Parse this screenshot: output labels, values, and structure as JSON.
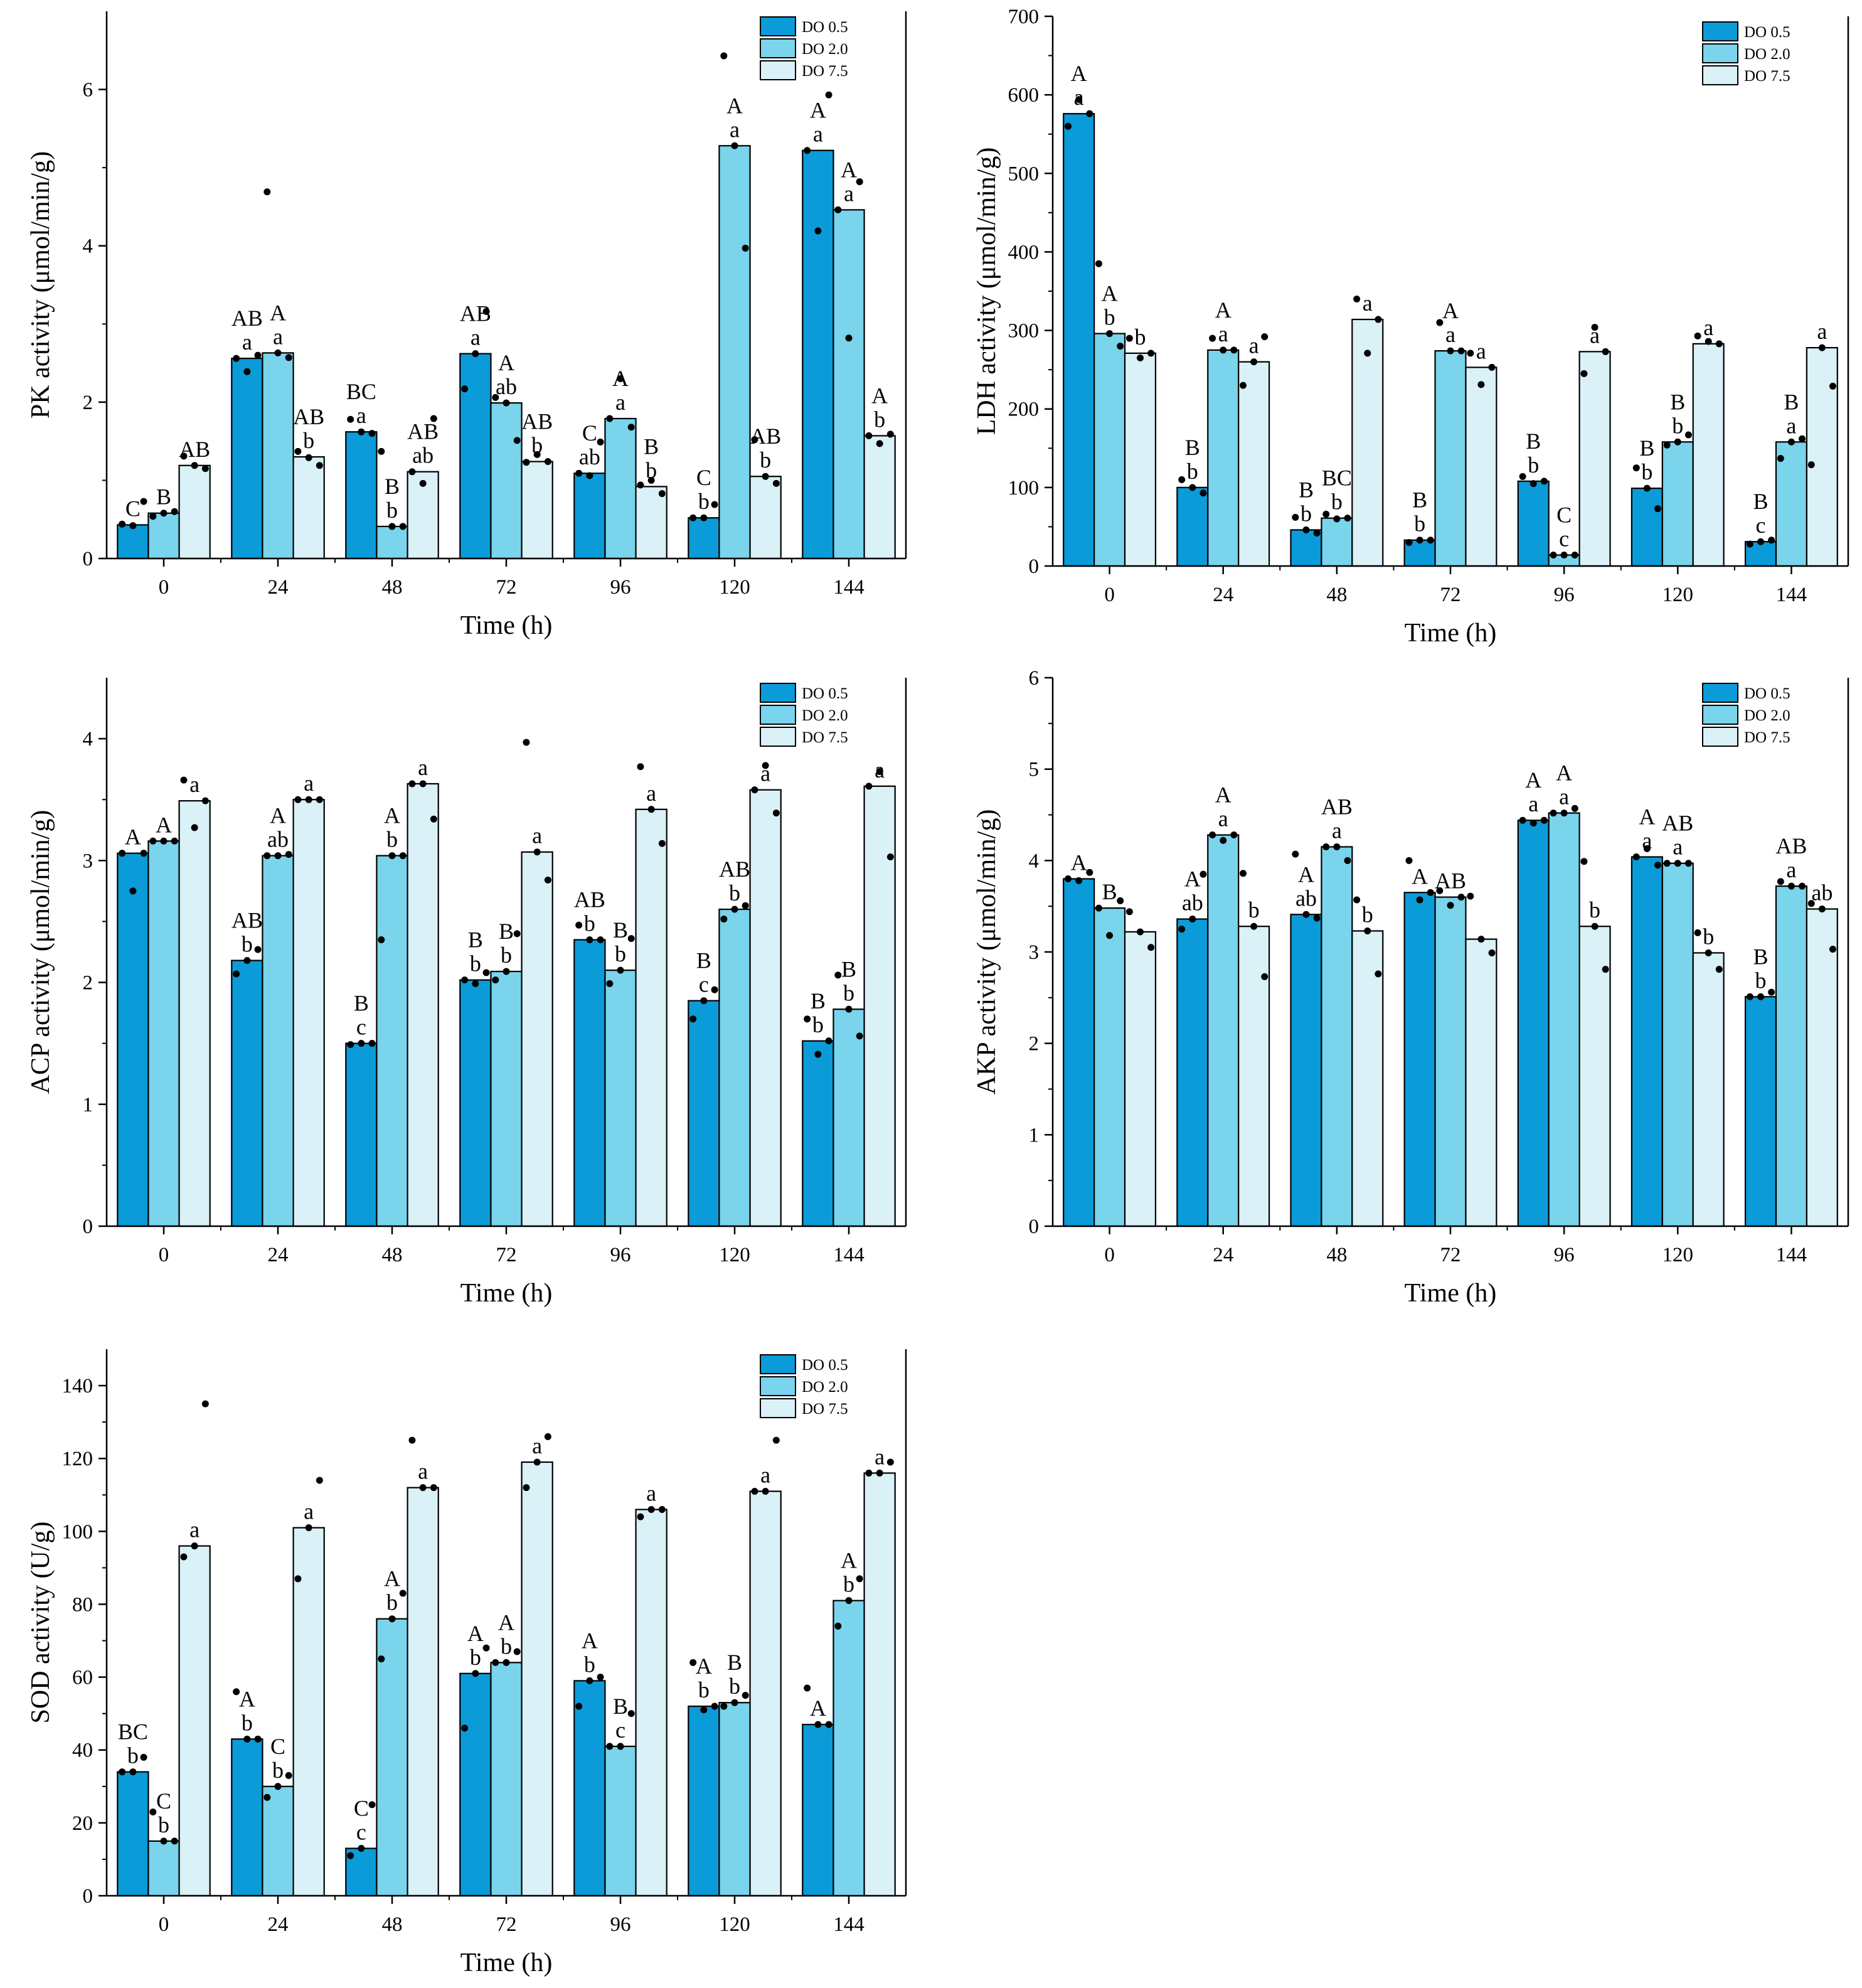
{
  "legend": [
    "DO 0.5",
    "DO 2.0",
    "DO 7.5"
  ],
  "colors": [
    "#0b9bd8",
    "#79d4ec",
    "#d9f1f7"
  ],
  "chart_data": [
    {
      "type": "bar",
      "title": "",
      "xlabel": "Time (h)",
      "ylabel": "PK activity (μmol/min/g)",
      "categories": [
        "0",
        "24",
        "48",
        "72",
        "96",
        "120",
        "144"
      ],
      "ylim": [
        0,
        7
      ],
      "yticks": [
        0,
        2,
        4,
        6
      ],
      "series": [
        {
          "name": "DO 0.5",
          "values": [
            0.43,
            2.56,
            1.62,
            2.62,
            1.09,
            0.52,
            5.22
          ],
          "points": [
            [
              0.44,
              0.42,
              0.73
            ],
            [
              2.56,
              2.39,
              2.6
            ],
            [
              1.78,
              1.62,
              1.6
            ],
            [
              2.17,
              2.62,
              3.16
            ],
            [
              1.09,
              1.06,
              1.49
            ],
            [
              0.52,
              0.52,
              0.69
            ],
            [
              5.22,
              4.19,
              5.93
            ]
          ],
          "labels": [
            "C",
            "AB\na",
            "BC\na",
            "AB\na",
            "C\nab",
            "C\nb",
            "A\na"
          ]
        },
        {
          "name": "DO 2.0",
          "values": [
            0.58,
            2.63,
            0.41,
            1.99,
            1.79,
            5.28,
            4.46
          ],
          "points": [
            [
              0.54,
              0.58,
              0.6
            ],
            [
              4.69,
              2.63,
              2.57
            ],
            [
              1.37,
              0.41,
              0.41
            ],
            [
              2.06,
              1.99,
              1.51
            ],
            [
              1.79,
              2.3,
              1.68
            ],
            [
              6.43,
              5.28,
              3.97
            ],
            [
              4.46,
              2.82,
              4.82
            ]
          ],
          "labels": [
            "B",
            "A\na",
            "B\nb",
            "A\nab",
            "A\na",
            "A\na",
            "A\na"
          ]
        },
        {
          "name": "DO 7.5",
          "values": [
            1.19,
            1.3,
            1.11,
            1.24,
            0.92,
            1.05,
            1.57
          ],
          "points": [
            [
              1.31,
              1.19,
              1.15
            ],
            [
              1.37,
              1.29,
              1.19
            ],
            [
              1.11,
              0.96,
              1.79
            ],
            [
              1.23,
              1.33,
              1.24
            ],
            [
              0.94,
              1.0,
              0.83
            ],
            [
              1.52,
              1.05,
              0.96
            ],
            [
              1.57,
              1.47,
              1.59
            ]
          ],
          "labels": [
            "AB",
            "AB\nb",
            "AB\nab",
            "AB\nb",
            "B\nb",
            "AB\nb",
            "A\nb"
          ]
        }
      ]
    },
    {
      "type": "bar",
      "title": "",
      "xlabel": "Time (h)",
      "ylabel": "LDH activity (μmol/min/g)",
      "categories": [
        "0",
        "24",
        "48",
        "72",
        "96",
        "120",
        "144"
      ],
      "ylim": [
        0,
        700
      ],
      "yticks": [
        0,
        100,
        200,
        300,
        400,
        500,
        600,
        700
      ],
      "series": [
        {
          "name": "DO 0.5",
          "values": [
            576,
            100,
            46,
            33,
            108,
            99,
            31
          ],
          "points": [
            [
              560,
              594,
              576
            ],
            [
              110,
              100,
              93
            ],
            [
              62,
              46,
              42
            ],
            [
              30,
              33,
              33
            ],
            [
              114,
              105,
              108
            ],
            [
              125,
              99,
              73
            ],
            [
              28,
              31,
              33
            ]
          ],
          "labels": [
            "A\na",
            "B\nb",
            "B\nb",
            "B\nb",
            "B\nb",
            "B\nb",
            "B\nc"
          ]
        },
        {
          "name": "DO 2.0",
          "values": [
            296,
            275,
            61,
            274,
            14,
            158,
            158
          ],
          "points": [
            [
              385,
              296,
              280
            ],
            [
              290,
              275,
              275
            ],
            [
              66,
              60,
              61
            ],
            [
              310,
              274,
              274
            ],
            [
              14,
              14,
              14
            ],
            [
              154,
              158,
              167
            ],
            [
              137,
              158,
              162
            ]
          ],
          "labels": [
            "A\nb",
            "A\na",
            "BC\nb",
            "A\na",
            "C\nc",
            "B\nb",
            "B\na"
          ]
        },
        {
          "name": "DO 7.5",
          "values": [
            271,
            260,
            314,
            253,
            273,
            283,
            278
          ],
          "points": [
            [
              290,
              265,
              271
            ],
            [
              230,
              260,
              292
            ],
            [
              340,
              271,
              314
            ],
            [
              271,
              231,
              253
            ],
            [
              245,
              304,
              273
            ],
            [
              293,
              286,
              283
            ],
            [
              129,
              278,
              229
            ]
          ],
          "labels": [
            "b",
            "a",
            "a",
            "a",
            "a",
            "a",
            "a"
          ]
        }
      ]
    },
    {
      "type": "bar",
      "title": "",
      "xlabel": "Time (h)",
      "ylabel": "ACP activity (μmol/min/g)",
      "categories": [
        "0",
        "24",
        "48",
        "72",
        "96",
        "120",
        "144"
      ],
      "ylim": [
        0,
        4.5
      ],
      "yticks": [
        0,
        1,
        2,
        3,
        4
      ],
      "series": [
        {
          "name": "DO 0.5",
          "values": [
            3.06,
            2.18,
            1.5,
            2.02,
            2.35,
            1.85,
            1.52
          ],
          "points": [
            [
              3.06,
              2.75,
              3.06
            ],
            [
              2.07,
              2.18,
              2.27
            ],
            [
              1.49,
              1.5,
              1.5
            ],
            [
              2.02,
              1.99,
              2.08
            ],
            [
              2.47,
              2.35,
              2.35
            ],
            [
              1.7,
              1.85,
              1.94
            ],
            [
              1.7,
              1.41,
              1.52
            ]
          ],
          "labels": [
            "A",
            "AB\nb",
            "B\nc",
            "B\nb",
            "AB\nb",
            "B\nc",
            "B\nb"
          ]
        },
        {
          "name": "DO 2.0",
          "values": [
            3.16,
            3.04,
            3.04,
            2.09,
            2.1,
            2.6,
            1.78
          ],
          "points": [
            [
              3.16,
              3.16,
              3.16
            ],
            [
              3.04,
              3.04,
              3.05
            ],
            [
              2.35,
              3.04,
              3.04
            ],
            [
              2.02,
              2.09,
              2.4
            ],
            [
              1.99,
              2.1,
              2.36
            ],
            [
              2.52,
              2.6,
              2.63
            ],
            [
              2.06,
              1.78,
              1.56
            ]
          ],
          "labels": [
            "A",
            "A\nab",
            "A\nb",
            "B\nb",
            "B\nb",
            "AB\nb",
            "B\nb"
          ]
        },
        {
          "name": "DO 7.5",
          "values": [
            3.49,
            3.5,
            3.63,
            3.07,
            3.42,
            3.58,
            3.61
          ],
          "points": [
            [
              3.66,
              3.27,
              3.49
            ],
            [
              3.5,
              3.5,
              3.5
            ],
            [
              3.63,
              3.63,
              3.34
            ],
            [
              3.97,
              3.07,
              2.84
            ],
            [
              3.77,
              3.42,
              3.14
            ],
            [
              3.58,
              3.78,
              3.39
            ],
            [
              3.61,
              3.73,
              3.03
            ]
          ],
          "labels": [
            "a",
            "a",
            "a",
            "a",
            "a",
            "a",
            "a"
          ]
        }
      ]
    },
    {
      "type": "bar",
      "title": "",
      "xlabel": "Time (h)",
      "ylabel": "AKP activity (μmol/min/g)",
      "categories": [
        "0",
        "24",
        "48",
        "72",
        "96",
        "120",
        "144"
      ],
      "ylim": [
        0,
        6
      ],
      "yticks": [
        0,
        1,
        2,
        3,
        4,
        5,
        6
      ],
      "series": [
        {
          "name": "DO 0.5",
          "values": [
            3.8,
            3.36,
            3.41,
            3.65,
            4.44,
            4.04,
            2.51
          ],
          "points": [
            [
              3.8,
              3.78,
              3.87
            ],
            [
              3.25,
              3.36,
              3.85
            ],
            [
              4.07,
              3.41,
              3.37
            ],
            [
              4.0,
              3.57,
              3.65
            ],
            [
              4.44,
              4.41,
              4.44
            ],
            [
              4.04,
              4.13,
              3.95
            ],
            [
              2.51,
              2.51,
              2.56
            ]
          ],
          "labels": [
            "A",
            "A\nab",
            "A\nab",
            "A",
            "A\na",
            "A\na",
            "B\nb"
          ]
        },
        {
          "name": "DO 2.0",
          "values": [
            3.48,
            4.28,
            4.15,
            3.6,
            4.52,
            3.97,
            3.72
          ],
          "points": [
            [
              3.48,
              3.18,
              3.56
            ],
            [
              4.28,
              4.22,
              4.28
            ],
            [
              4.15,
              4.15,
              4.0
            ],
            [
              3.67,
              3.51,
              3.6
            ],
            [
              4.52,
              4.52,
              4.57
            ],
            [
              3.97,
              3.97,
              3.97
            ],
            [
              3.77,
              3.72,
              3.72
            ]
          ],
          "labels": [
            "B",
            "A\na",
            "AB\na",
            "AB",
            "A\na",
            "AB\na",
            "AB\na"
          ]
        },
        {
          "name": "DO 7.5",
          "values": [
            3.22,
            3.28,
            3.23,
            3.14,
            3.28,
            2.99,
            3.47
          ],
          "points": [
            [
              3.44,
              3.22,
              3.05
            ],
            [
              3.86,
              3.28,
              2.73
            ],
            [
              3.57,
              3.23,
              2.76
            ],
            [
              3.61,
              3.14,
              2.99
            ],
            [
              3.99,
              3.28,
              2.81
            ],
            [
              3.21,
              2.99,
              2.81
            ],
            [
              3.53,
              3.47,
              3.03
            ]
          ],
          "labels": [
            "",
            "b",
            "b",
            "",
            "b",
            "b",
            "ab"
          ]
        }
      ]
    },
    {
      "type": "bar",
      "title": "",
      "xlabel": "Time (h)",
      "ylabel": "SOD activity (U/g)",
      "categories": [
        "0",
        "24",
        "48",
        "72",
        "96",
        "120",
        "144"
      ],
      "ylim": [
        0,
        150
      ],
      "yticks": [
        0,
        20,
        40,
        60,
        80,
        100,
        120,
        140
      ],
      "series": [
        {
          "name": "DO 0.5",
          "values": [
            34,
            43,
            13,
            61,
            59,
            52,
            47
          ],
          "points": [
            [
              34,
              34,
              38
            ],
            [
              56,
              43,
              43
            ],
            [
              11,
              13,
              25
            ],
            [
              46,
              61,
              68
            ],
            [
              52,
              59,
              60
            ],
            [
              64,
              51,
              52
            ],
            [
              57,
              47,
              47
            ]
          ],
          "labels": [
            "BC\nb",
            "A\nb",
            "C\nc",
            "A\nb",
            "A\nb",
            "A\nb",
            "A"
          ]
        },
        {
          "name": "DO 2.0",
          "values": [
            15,
            30,
            76,
            64,
            41,
            53,
            81
          ],
          "points": [
            [
              23,
              15,
              15
            ],
            [
              27,
              30,
              33
            ],
            [
              65,
              76,
              83
            ],
            [
              64,
              64,
              67
            ],
            [
              41,
              41,
              50
            ],
            [
              52,
              53,
              55
            ],
            [
              74,
              81,
              87
            ]
          ],
          "labels": [
            "C\nb",
            "C\nb",
            "A\nb",
            "A\nb",
            "B\nc",
            "B\nb",
            "A\nb"
          ]
        },
        {
          "name": "DO 7.5",
          "values": [
            96,
            101,
            112,
            119,
            106,
            111,
            116
          ],
          "points": [
            [
              93,
              96,
              135
            ],
            [
              87,
              101,
              114
            ],
            [
              125,
              112,
              112
            ],
            [
              112,
              119,
              126
            ],
            [
              104,
              106,
              106
            ],
            [
              111,
              111,
              125
            ],
            [
              116,
              116,
              119
            ]
          ],
          "labels": [
            "a",
            "a",
            "a",
            "a",
            "a",
            "a",
            "a"
          ]
        }
      ]
    }
  ]
}
